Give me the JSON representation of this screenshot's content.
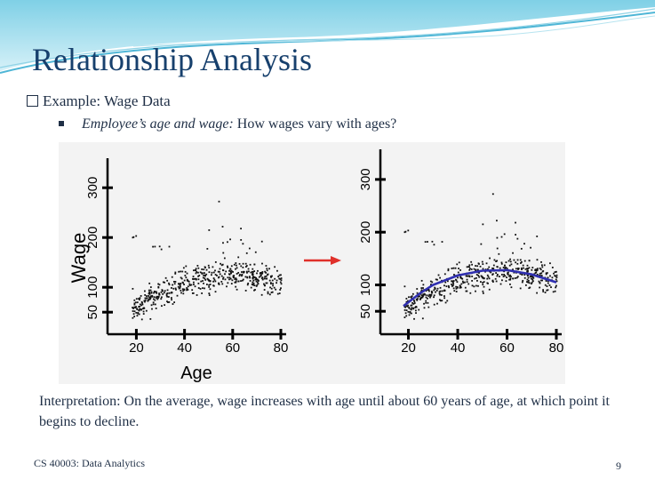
{
  "slide": {
    "title": "Relationship Analysis",
    "bullet1": "Example: Wage Data",
    "bullet2_italic": "Employee’s age and wage:",
    "bullet2_rest": " How wages vary with ages?",
    "interpretation": "Interpretation: On the average, wage increases with age until about 60 years of age, at which point it begins to decline.",
    "footer": "CS 40003: Data Analytics",
    "page_number": "9"
  },
  "chart_data": [
    {
      "type": "scatter",
      "xlabel": "Age",
      "ylabel": "Wage",
      "x_ticks": [
        "20",
        "40",
        "60",
        "80"
      ],
      "y_ticks": [
        "50",
        "100",
        "200",
        "300"
      ],
      "xlim": [
        18,
        80
      ],
      "ylim": [
        20,
        320
      ]
    },
    {
      "type": "scatter",
      "xlabel": "",
      "ylabel": "",
      "x_ticks": [
        "20",
        "40",
        "60",
        "80"
      ],
      "y_ticks": [
        "50",
        "100",
        "200",
        "300"
      ],
      "xlim": [
        18,
        80
      ],
      "ylim": [
        20,
        320
      ],
      "trend_color": "#2f2fb0",
      "trend_line": [
        {
          "x": 18,
          "y": 60
        },
        {
          "x": 25,
          "y": 85
        },
        {
          "x": 30,
          "y": 100
        },
        {
          "x": 40,
          "y": 118
        },
        {
          "x": 50,
          "y": 127
        },
        {
          "x": 60,
          "y": 128
        },
        {
          "x": 70,
          "y": 120
        },
        {
          "x": 80,
          "y": 105
        }
      ]
    }
  ],
  "colors": {
    "title": "#17406d",
    "arrow": "#e0302a",
    "points": "#111111",
    "trend": "#2f2fb0"
  }
}
